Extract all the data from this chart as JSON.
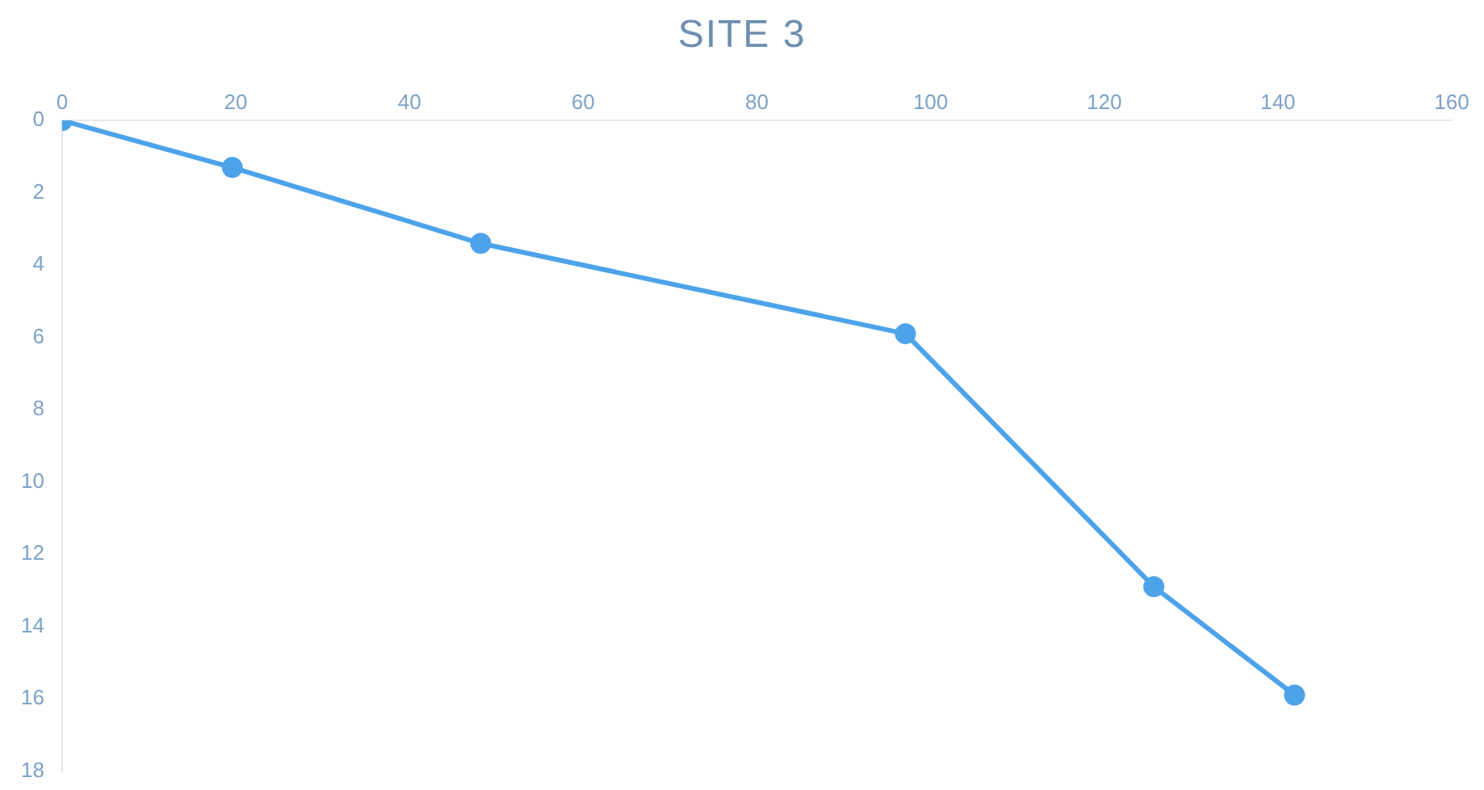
{
  "chart_data": {
    "type": "line",
    "title": "SITE 3",
    "x": [
      0,
      19.6,
      48.2,
      97.1,
      125.7,
      141.9
    ],
    "series": [
      {
        "color": "#4da3ea",
        "values": [
          0,
          1.3,
          3.4,
          5.9,
          12.9,
          15.9
        ]
      }
    ],
    "xlim": [
      0,
      160
    ],
    "xticks": [
      0,
      20,
      40,
      60,
      80,
      100,
      120,
      140,
      160
    ],
    "ylim": [
      18,
      0
    ],
    "yticks": [
      0,
      2,
      4,
      6,
      8,
      10,
      12,
      14,
      16,
      18
    ],
    "grid": false,
    "legend": false,
    "marker": "circle",
    "line_style": "solid"
  }
}
